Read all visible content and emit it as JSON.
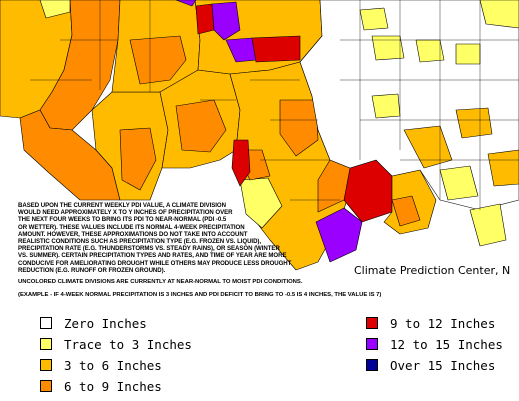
{
  "map": {
    "credit": "Climate Prediction Center, N",
    "note_lines": [
      "BASED UPON THE CURRENT WEEKLY PDI VALUE, A CLIMATE DIVISION",
      "WOULD NEED APPROXIMATELY X TO Y INCHES OF PRECIPITATION OVER",
      "THE NEXT FOUR WEEKS TO BRING ITS PDI TO NEAR-NORMAL (PDI -0.5",
      "OR WETTER). THESE VALUES INCLUDE ITS NORMAL 4-WEEK PRECIPITATION",
      "AMOUNT. HOWEVER, THESE APPROXIMATIONS DO NOT TAKE INTO ACCOUNT",
      "REALISTIC CONDITIONS SUCH AS PRECIPITATION TYPE (E.G. FROZEN VS. LIQUID),",
      "PRECIPITATION RATE (E.G. THUNDERSTORMS VS. STEADY RAINS), OR SEASON (WINTER",
      "VS. SUMMER). CERTAIN PRECIPITATION TYPES AND RATES, AND TIME OF YEAR ARE MORE",
      "CONDUCIVE FOR AMELIORATING DROUGHT WHILE OTHERS MAY PRODUCE LESS DROUGHT",
      "REDUCTION (E.G. RUNOFF OR FROZEN GROUND)."
    ],
    "footnote_1": "UNCOLORED CLIMATE DIVISIONS ARE CURRENTLY AT NEAR-NORMAL TO MOIST PDI CONDITIONS.",
    "footnote_2": "(EXAMPLE - IF 4-WEEK NORMAL PRECIPITATION IS 3 INCHES AND PDI DEFICIT TO BRING TO -0.5 IS 4 INCHES, THE VALUE IS 7)"
  },
  "legend": [
    {
      "label": "Zero Inches",
      "color": "#ffffff"
    },
    {
      "label": "Trace to 3 Inches",
      "color": "#ffff66"
    },
    {
      "label": "3 to 6 Inches",
      "color": "#ffbb00"
    },
    {
      "label": "6 to 9 Inches",
      "color": "#ff8c00"
    },
    {
      "label": "9 to 12 Inches",
      "color": "#dd0000"
    },
    {
      "label": "12 to 15 Inches",
      "color": "#9900ff"
    },
    {
      "label": "Over 15 Inches",
      "color": "#000099"
    }
  ],
  "colors": {
    "white": "#ffffff",
    "yellow": "#ffff66",
    "light_orange": "#ffbb00",
    "orange": "#ff8c00",
    "red": "#dd0000",
    "purple": "#9900ff",
    "navy": "#000099",
    "border": "#000000"
  }
}
